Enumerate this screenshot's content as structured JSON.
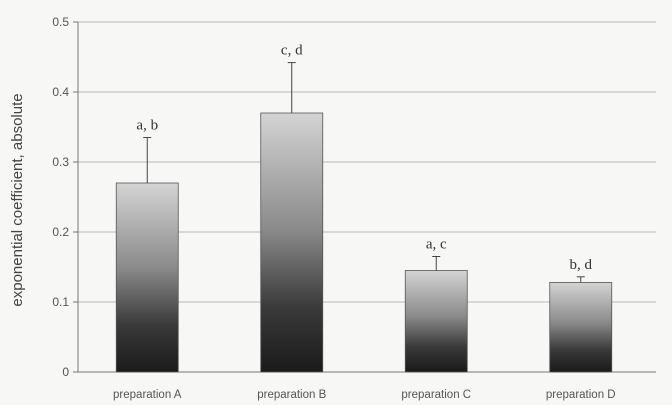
{
  "chart_data": {
    "type": "bar",
    "title": "",
    "xlabel": "",
    "ylabel": "exponential coefficient, absolute",
    "categories": [
      "preparation A",
      "preparation B",
      "preparation C",
      "preparation D"
    ],
    "values": [
      0.27,
      0.37,
      0.145,
      0.128
    ],
    "errors": [
      0.065,
      0.072,
      0.02,
      0.008
    ],
    "annotations": [
      "a, b",
      "c, d",
      "a, c",
      "b, d"
    ],
    "yticks": [
      0,
      0.1,
      0.2,
      0.3,
      0.4,
      0.5
    ],
    "ytick_labels": [
      "0",
      "0.1",
      "0.2",
      "0.3",
      "0.4",
      "0.5"
    ],
    "ylim": [
      0,
      0.5
    ],
    "grid": true,
    "colors": {
      "bar_top": "#d4d4d4",
      "bar_bottom": "#1a1a1a",
      "grid": "#b8b8b8",
      "axis": "#777777"
    }
  }
}
